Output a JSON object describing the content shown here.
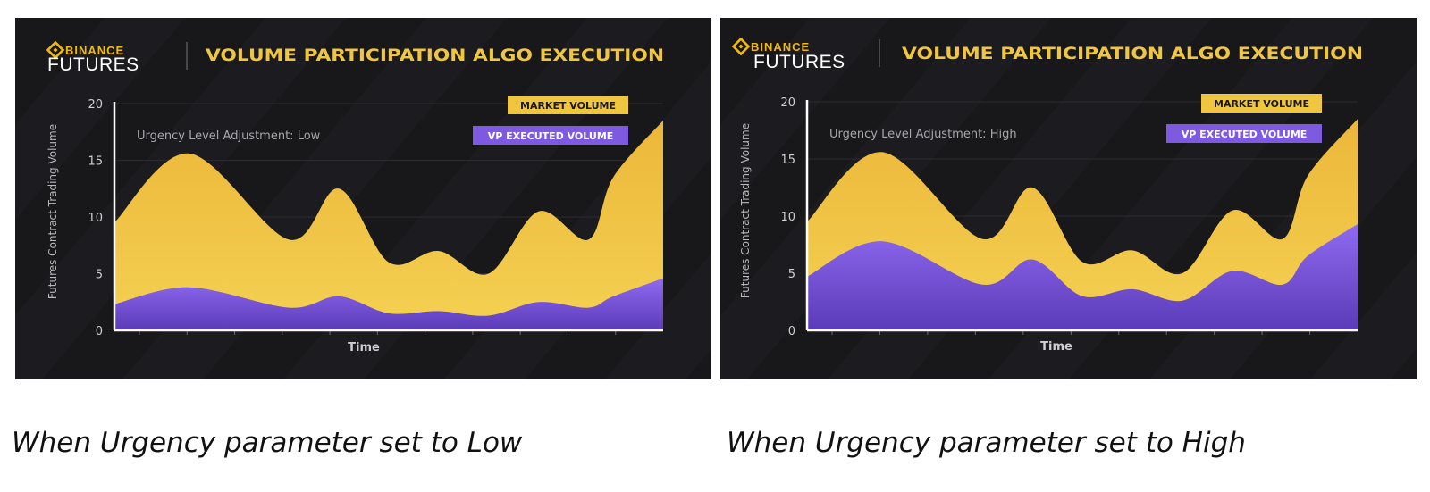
{
  "panels": [
    {
      "brand_top": "BINANCE",
      "brand_bottom": "FUTURES",
      "title": "VOLUME PARTICIPATION ALGO EXECUTION",
      "annotation": "Urgency Level Adjustment: Low",
      "caption": "When Urgency parameter set to Low"
    },
    {
      "brand_top": "BINANCE",
      "brand_bottom": "FUTURES",
      "title": "VOLUME PARTICIPATION ALGO EXECUTION",
      "annotation": "Urgency Level Adjustment: High",
      "caption": "When Urgency parameter set to High"
    }
  ],
  "colors": {
    "background": "#18181b",
    "market_volume": "#f0c540",
    "vp_executed_volume": "#8660e0",
    "brand": "#f0b90b",
    "text": "#ffffff"
  },
  "chart_data": [
    {
      "type": "area",
      "x": [
        0,
        1.5,
        3.5,
        4.5,
        5.5,
        6.5,
        7.5,
        8.5,
        9.5,
        10,
        11
      ],
      "xlabel": "Time",
      "ylabel": "Futures Contract Trading Volume",
      "ylim": [
        0,
        20
      ],
      "yticks": [
        0,
        5,
        10,
        15,
        20
      ],
      "grid": true,
      "legend_position": "top-right",
      "series": [
        {
          "name": "MARKET VOLUME",
          "values": [
            9.5,
            15.6,
            8.0,
            12.5,
            6.0,
            7.0,
            5.0,
            10.5,
            8.0,
            13.5,
            18.5
          ]
        },
        {
          "name": "VP EXECUTED VOLUME",
          "values": [
            2.3,
            3.8,
            2.0,
            3.0,
            1.5,
            1.7,
            1.3,
            2.5,
            2.0,
            3.0,
            4.6
          ]
        }
      ]
    },
    {
      "type": "area",
      "x": [
        0,
        1.5,
        3.5,
        4.5,
        5.5,
        6.5,
        7.5,
        8.5,
        9.5,
        10,
        11
      ],
      "xlabel": "Time",
      "ylabel": "Futures Contract Trading Volume",
      "ylim": [
        0,
        20
      ],
      "yticks": [
        0,
        5,
        10,
        15,
        20
      ],
      "grid": true,
      "legend_position": "top-right",
      "series": [
        {
          "name": "MARKET VOLUME",
          "values": [
            9.5,
            15.6,
            8.0,
            12.5,
            6.0,
            7.0,
            5.0,
            10.5,
            8.0,
            13.5,
            18.5
          ]
        },
        {
          "name": "VP EXECUTED VOLUME",
          "values": [
            4.7,
            7.8,
            4.0,
            6.2,
            3.0,
            3.6,
            2.6,
            5.2,
            4.0,
            6.5,
            9.3
          ]
        }
      ]
    }
  ]
}
